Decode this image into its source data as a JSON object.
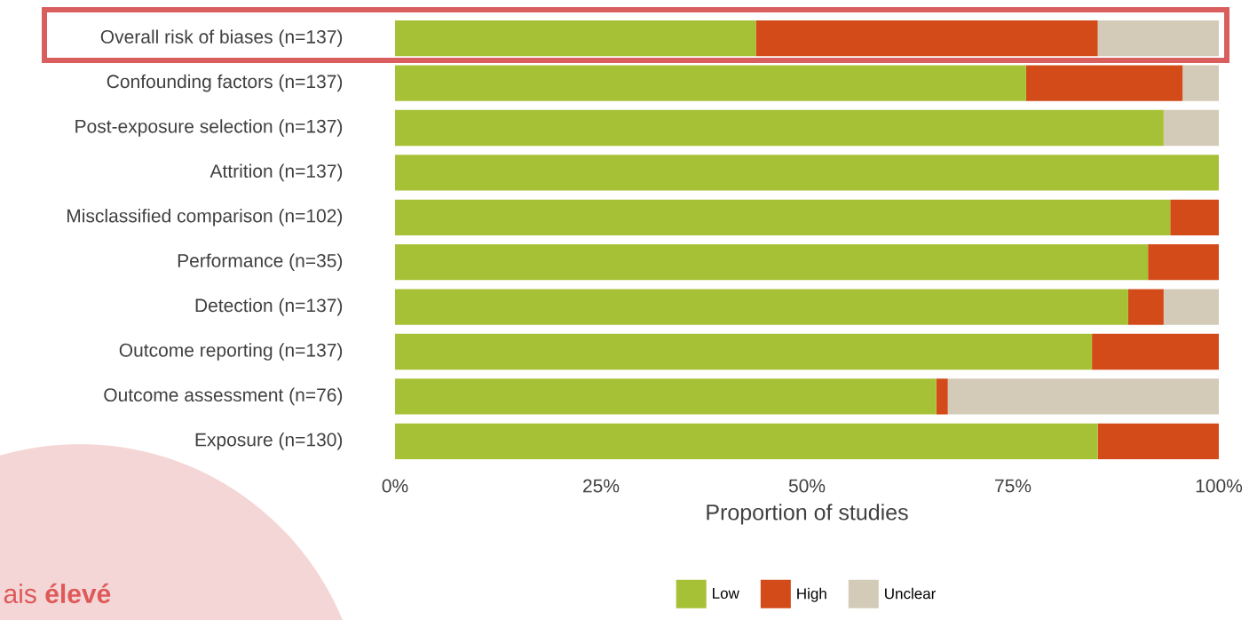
{
  "chart_data": {
    "type": "bar",
    "orientation": "horizontal",
    "stacked": true,
    "xlabel": "Proportion of studies",
    "categories": [
      "Overall risk of biases (n=137)",
      "Confounding factors (n=137)",
      "Post-exposure selection (n=137)",
      "Attrition (n=137)",
      "Misclassified comparison (n=102)",
      "Performance (n=35)",
      "Detection (n=137)",
      "Outcome reporting (n=137)",
      "Outcome assessment (n=76)",
      "Exposure (n=130)"
    ],
    "series": [
      {
        "name": "Low",
        "color": "#a7c137",
        "values": [
          43.8,
          76.6,
          93.3,
          100,
          94.1,
          91.4,
          89.0,
          84.6,
          65.7,
          85.3
        ]
      },
      {
        "name": "High",
        "color": "#d34b18",
        "values": [
          41.5,
          19.0,
          null,
          null,
          5.9,
          8.6,
          4.3,
          15.4,
          1.4,
          14.7
        ]
      },
      {
        "name": "Unclear",
        "color": "#d3cbb8",
        "values": [
          14.7,
          4.4,
          6.7,
          null,
          null,
          null,
          6.7,
          null,
          32.9,
          null
        ]
      }
    ],
    "xlim": [
      0,
      100
    ],
    "xticks": [
      {
        "value": 0,
        "label": "0%"
      },
      {
        "value": 25,
        "label": "25%"
      },
      {
        "value": 50,
        "label": "50%"
      },
      {
        "value": 75,
        "label": "75%"
      },
      {
        "value": 100,
        "label": "100%"
      }
    ],
    "legend": "bottom",
    "annotations": [
      "ais **élevé**"
    ]
  }
}
